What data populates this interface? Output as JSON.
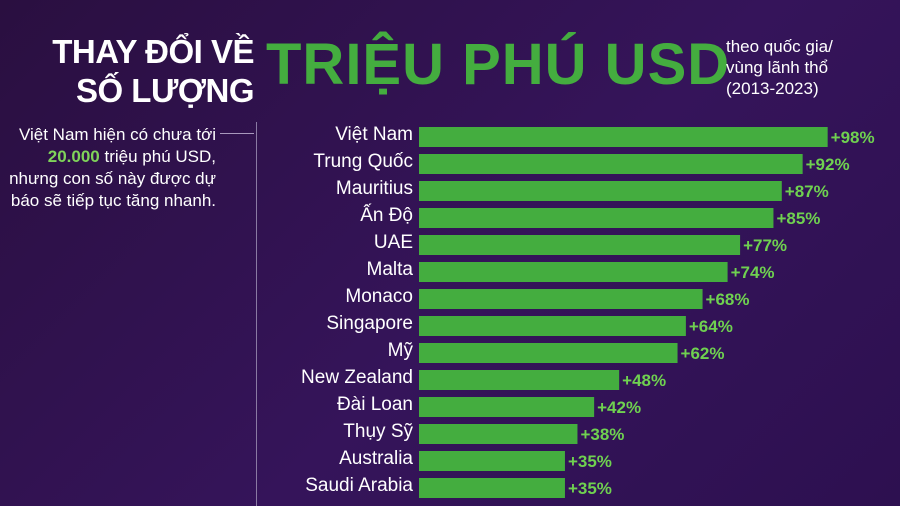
{
  "header": {
    "title_left_line1": "THAY ĐỔI VỀ",
    "title_left_line2": "SỐ LƯỢNG",
    "title_main": "TRIỆU PHÚ USD",
    "subtitle_line1": "theo quốc gia/",
    "subtitle_line2": "vùng lãnh thổ",
    "subtitle_line3": "(2013-2023)"
  },
  "note": {
    "part1": "Việt Nam hiện có chưa tới ",
    "highlight": "20.000",
    "part2": " triệu phú USD, nhưng con số này được dự báo sẽ tiếp tục tăng nhanh."
  },
  "colors": {
    "background": "#2d1050",
    "bar": "#44ad3f",
    "value_text": "#6fd150",
    "title_green": "#44ad3f"
  },
  "chart_data": {
    "type": "bar",
    "orientation": "horizontal",
    "categories": [
      "Việt Nam",
      "Trung Quốc",
      "Mauritius",
      "Ấn Độ",
      "UAE",
      "Malta",
      "Monaco",
      "Singapore",
      "Mỹ",
      "New Zealand",
      "Đài Loan",
      "Thụy Sỹ",
      "Australia",
      "Saudi Arabia"
    ],
    "values": [
      98,
      92,
      87,
      85,
      77,
      74,
      68,
      64,
      62,
      48,
      42,
      38,
      35,
      35
    ],
    "value_labels": [
      "+98%",
      "+92%",
      "+87%",
      "+85%",
      "+77%",
      "+74%",
      "+68%",
      "+64%",
      "+62%",
      "+48%",
      "+42%",
      "+38%",
      "+35%",
      "+35%"
    ],
    "unit": "%",
    "xlim": [
      0,
      100
    ],
    "grid": false,
    "legend": "none"
  }
}
